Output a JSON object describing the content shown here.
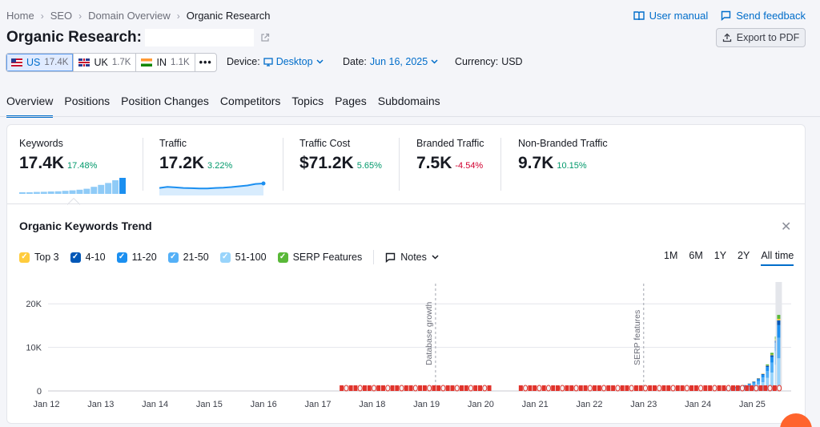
{
  "breadcrumbs": [
    "Home",
    "SEO",
    "Domain Overview",
    "Organic Research"
  ],
  "header": {
    "title": "Organic Research:",
    "user_manual": "User manual",
    "send_feedback": "Send feedback",
    "export": "Export to PDF"
  },
  "databases": [
    {
      "code": "US",
      "count": "17.4K",
      "flag": "us",
      "active": true
    },
    {
      "code": "UK",
      "count": "1.7K",
      "flag": "uk",
      "active": false
    },
    {
      "code": "IN",
      "count": "1.1K",
      "flag": "in",
      "active": false
    }
  ],
  "more_label": "•••",
  "filters": {
    "device_label": "Device:",
    "device_value": "Desktop",
    "date_label": "Date:",
    "date_value": "Jun 16, 2025",
    "currency_label": "Currency:",
    "currency_value": "USD"
  },
  "tabs": [
    "Overview",
    "Positions",
    "Position Changes",
    "Competitors",
    "Topics",
    "Pages",
    "Subdomains"
  ],
  "metrics": [
    {
      "label": "Keywords",
      "value": "17.4K",
      "change": "17.48%",
      "dir": "pos"
    },
    {
      "label": "Traffic",
      "value": "17.2K",
      "change": "3.22%",
      "dir": "pos"
    },
    {
      "label": "Traffic Cost",
      "value": "$71.2K",
      "change": "5.65%",
      "dir": "pos"
    },
    {
      "label": "Branded Traffic",
      "value": "7.5K",
      "change": "-4.54%",
      "dir": "neg"
    },
    {
      "label": "Non-Branded Traffic",
      "value": "9.7K",
      "change": "10.15%",
      "dir": "pos"
    }
  ],
  "sparklines": {
    "keywords": [
      1,
      1,
      1.2,
      1.3,
      1.5,
      1.6,
      1.9,
      2.2,
      2.6,
      3.2,
      4.4,
      5.6,
      6.8,
      8.5,
      10
    ],
    "traffic": [
      6,
      7,
      6.5,
      6,
      5.8,
      5.5,
      5.6,
      6,
      6.3,
      6.8,
      7.5,
      8.2,
      9.6,
      10
    ]
  },
  "trend": {
    "title": "Organic Keywords Trend",
    "legend": [
      {
        "label": "Top 3",
        "color": "#ffcc3d"
      },
      {
        "label": "4-10",
        "color": "#0057b7"
      },
      {
        "label": "11-20",
        "color": "#1b8ff0"
      },
      {
        "label": "21-50",
        "color": "#54b0f7"
      },
      {
        "label": "51-100",
        "color": "#99d4fb"
      },
      {
        "label": "SERP Features",
        "color": "#59b838"
      }
    ],
    "notes_label": "Notes",
    "ranges": [
      "1M",
      "6M",
      "1Y",
      "2Y",
      "All time"
    ],
    "active_range": "All time"
  },
  "chart_data": {
    "type": "bar",
    "x_ticks": [
      "Jan 12",
      "Jan 13",
      "Jan 14",
      "Jan 15",
      "Jan 16",
      "Jan 17",
      "Jan 18",
      "Jan 19",
      "Jan 20",
      "Jan 21",
      "Jan 22",
      "Jan 23",
      "Jan 24",
      "Jan 25"
    ],
    "y_ticks": [
      "0",
      "10K",
      "20K"
    ],
    "ylim": [
      0,
      25000
    ],
    "annotations": [
      {
        "label": "Database growth",
        "x": "2019-03"
      },
      {
        "label": "SERP features",
        "x": "2023-01"
      }
    ],
    "series_stack": [
      "51-100",
      "21-50",
      "11-20",
      "4-10",
      "Top 3",
      "SERP Features"
    ],
    "bars": [
      {
        "date": "2024-07",
        "values": [
          300,
          150,
          100,
          50,
          20,
          0
        ]
      },
      {
        "date": "2024-08",
        "values": [
          400,
          200,
          100,
          50,
          20,
          0
        ]
      },
      {
        "date": "2024-09",
        "values": [
          500,
          250,
          150,
          50,
          30,
          0
        ]
      },
      {
        "date": "2024-10",
        "values": [
          600,
          300,
          150,
          80,
          30,
          0
        ]
      },
      {
        "date": "2024-11",
        "values": [
          700,
          350,
          200,
          80,
          30,
          0
        ]
      },
      {
        "date": "2024-12",
        "values": [
          900,
          450,
          250,
          100,
          40,
          0
        ]
      },
      {
        "date": "2025-01",
        "values": [
          1100,
          600,
          300,
          120,
          50,
          0
        ]
      },
      {
        "date": "2025-02",
        "values": [
          1500,
          800,
          400,
          150,
          60,
          0
        ]
      },
      {
        "date": "2025-03",
        "values": [
          2000,
          1100,
          600,
          200,
          80,
          0
        ]
      },
      {
        "date": "2025-04",
        "values": [
          3000,
          1600,
          900,
          300,
          100,
          200
        ]
      },
      {
        "date": "2025-05",
        "values": [
          4200,
          2300,
          1300,
          400,
          150,
          400
        ]
      },
      {
        "date": "2025-06",
        "values": [
          6000,
          3200,
          1800,
          600,
          200,
          700
        ]
      },
      {
        "date": "2025-06-16",
        "values": [
          7500,
          4700,
          2900,
          1100,
          350,
          900
        ]
      }
    ],
    "grid": true,
    "legend": "top-left"
  }
}
